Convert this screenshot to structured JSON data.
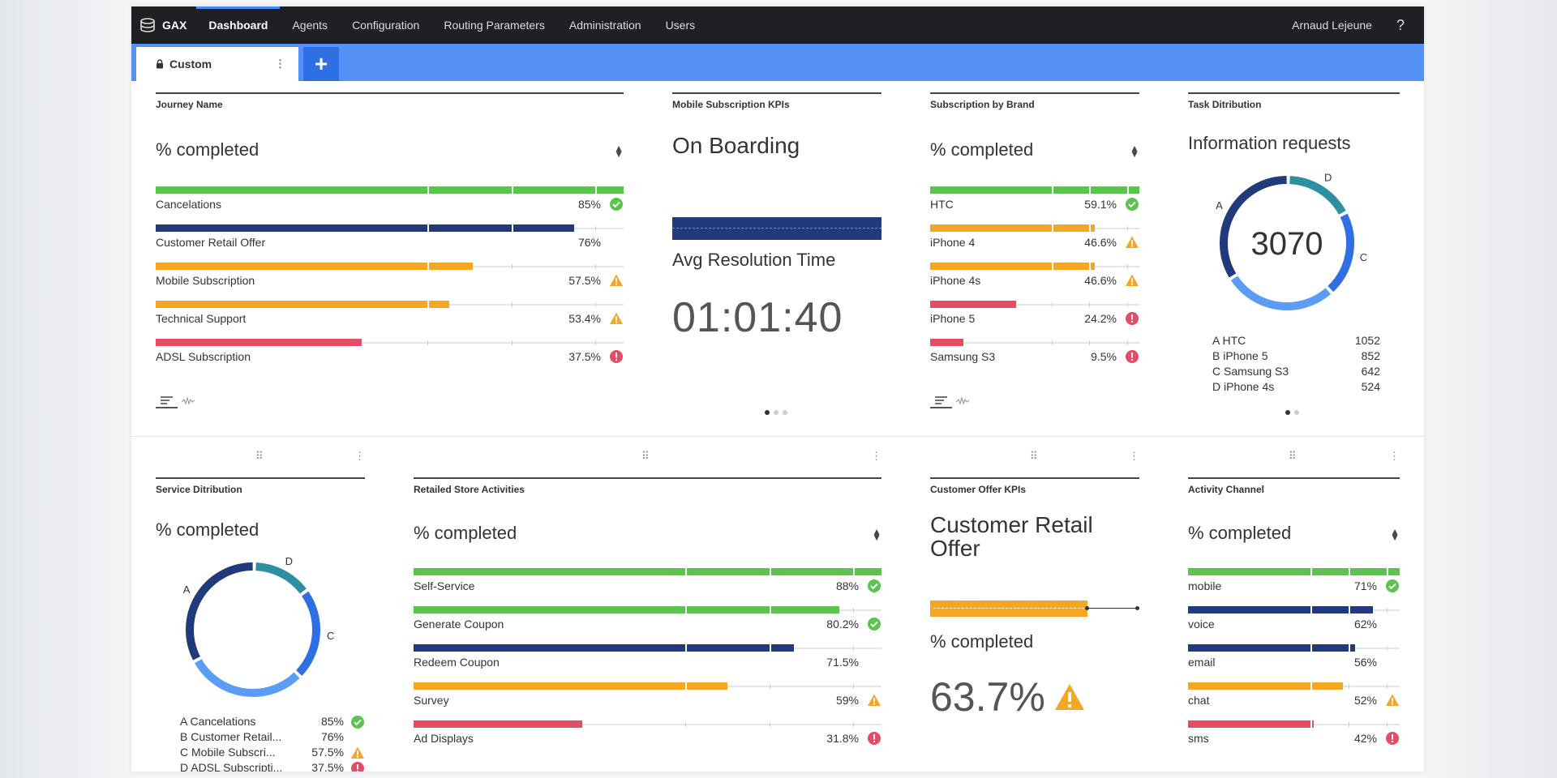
{
  "app": {
    "brand": "GAX",
    "nav": [
      "Dashboard",
      "Agents",
      "Configuration",
      "Routing Parameters",
      "Administration",
      "Users"
    ],
    "user": "Arnaud Lejeune",
    "help": "?"
  },
  "tabs": {
    "active": "Custom",
    "add": "+"
  },
  "colors": {
    "green": "#5bc34e",
    "navy": "#213a7c",
    "orange": "#f5a623",
    "red": "#e64c63",
    "blue": "#5590f6",
    "teal": "#2e8fa3"
  },
  "journey": {
    "title": "Journey Name",
    "subtitle": "% completed",
    "rows": [
      {
        "label": "Cancelations",
        "value": "85%",
        "pct": 100,
        "color": "green",
        "status": "ok"
      },
      {
        "label": "Customer Retail Offer",
        "value": "76%",
        "pct": 89.5,
        "color": "navy",
        "status": "none"
      },
      {
        "label": "Mobile Subscription",
        "value": "57.5%",
        "pct": 67.7,
        "color": "orange",
        "status": "warn"
      },
      {
        "label": "Technical Support",
        "value": "53.4%",
        "pct": 62.8,
        "color": "orange",
        "status": "warn"
      },
      {
        "label": "ADSL Subscription",
        "value": "37.5%",
        "pct": 44.1,
        "color": "red",
        "status": "err"
      }
    ]
  },
  "mobile_kpi": {
    "title": "Mobile Subscription KPIs",
    "heading": "On Boarding",
    "metric": "Avg Resolution Time",
    "time": "01:01:40"
  },
  "brand": {
    "title": "Subscription by Brand",
    "subtitle": "% completed",
    "rows": [
      {
        "label": "HTC",
        "value": "59.1%",
        "pct": 100,
        "color": "green",
        "status": "ok"
      },
      {
        "label": "iPhone 4",
        "value": "46.6%",
        "pct": 78.8,
        "color": "orange",
        "status": "warn"
      },
      {
        "label": "iPhone 4s",
        "value": "46.6%",
        "pct": 78.8,
        "color": "orange",
        "status": "warn"
      },
      {
        "label": "iPhone 5",
        "value": "24.2%",
        "pct": 41,
        "color": "red",
        "status": "err"
      },
      {
        "label": "Samsung S3",
        "value": "9.5%",
        "pct": 16,
        "color": "red",
        "status": "err"
      }
    ]
  },
  "task": {
    "title": "Task Ditribution",
    "subtitle": "Information requests",
    "total": "3070",
    "legend": [
      {
        "label": "A HTC",
        "value": "1052",
        "letter": "A",
        "num": 1052,
        "color": "navy"
      },
      {
        "label": "B iPhone 5",
        "value": "852",
        "letter": "B",
        "num": 852,
        "color": "blue"
      },
      {
        "label": "C Samsung S3",
        "value": "642",
        "letter": "C",
        "num": 642,
        "color": "blue2"
      },
      {
        "label": "D iPhone 4s",
        "value": "524",
        "letter": "D",
        "num": 524,
        "color": "teal"
      }
    ]
  },
  "service": {
    "title": "Service Ditribution",
    "subtitle": "% completed",
    "legend": [
      {
        "label": "A Cancelations",
        "value": "85%",
        "letter": "A",
        "num": 85,
        "status": "ok"
      },
      {
        "label": "B Customer Retail...",
        "value": "76%",
        "letter": "B",
        "num": 76,
        "status": "none"
      },
      {
        "label": "C Mobile Subscri...",
        "value": "57.5%",
        "letter": "C",
        "num": 57.5,
        "status": "warn"
      },
      {
        "label": "D ADSL Subscripti...",
        "value": "37.5%",
        "letter": "D",
        "num": 37.5,
        "status": "err"
      }
    ]
  },
  "retail": {
    "title": "Retailed Store Activities",
    "subtitle": "% completed",
    "rows": [
      {
        "label": "Self-Service",
        "value": "88%",
        "pct": 100,
        "color": "green",
        "status": "ok"
      },
      {
        "label": "Generate Coupon",
        "value": "80.2%",
        "pct": 91,
        "color": "green",
        "status": "ok"
      },
      {
        "label": "Redeem Coupon",
        "value": "71.5%",
        "pct": 81.2,
        "color": "navy",
        "status": "none"
      },
      {
        "label": "Survey",
        "value": "59%",
        "pct": 67,
        "color": "orange",
        "status": "warn"
      },
      {
        "label": "Ad Displays",
        "value": "31.8%",
        "pct": 36.1,
        "color": "red",
        "status": "err"
      }
    ]
  },
  "offer": {
    "title": "Customer Offer KPIs",
    "heading": "Customer Retail Offer",
    "subtitle": "% completed",
    "value": "63.7%",
    "pct": 75
  },
  "activity": {
    "title": "Activity Channel",
    "subtitle": "% completed",
    "rows": [
      {
        "label": "mobile",
        "value": "71%",
        "pct": 100,
        "color": "green",
        "status": "ok"
      },
      {
        "label": "voice",
        "value": "62%",
        "pct": 87.3,
        "color": "navy",
        "status": "none"
      },
      {
        "label": "email",
        "value": "56%",
        "pct": 78.9,
        "color": "navy",
        "status": "none"
      },
      {
        "label": "chat",
        "value": "52%",
        "pct": 73.2,
        "color": "orange",
        "status": "warn"
      },
      {
        "label": "sms",
        "value": "42%",
        "pct": 59.2,
        "color": "red",
        "status": "err"
      }
    ]
  }
}
